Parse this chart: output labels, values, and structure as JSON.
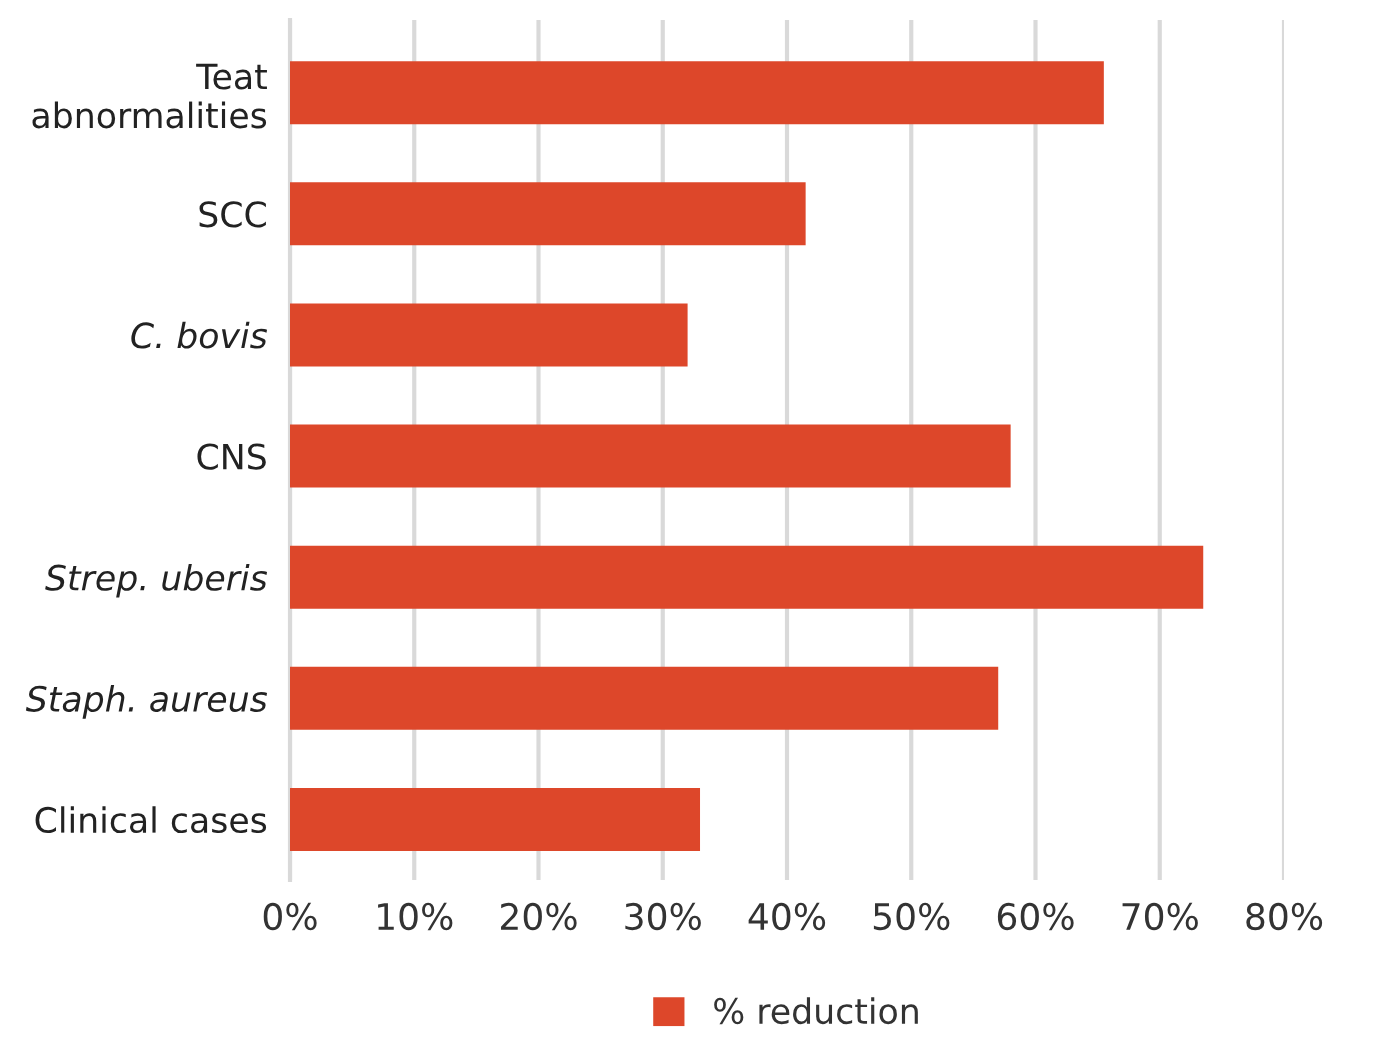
{
  "chart_data": {
    "type": "bar",
    "orientation": "horizontal",
    "categories": [
      "Teat\nabnormalities",
      "SCC",
      "C. bovis",
      "CNS",
      "Strep. uberis",
      "Staph. aureus",
      "Clinical cases"
    ],
    "series": [
      {
        "name": "% reduction",
        "color": "#dd472a",
        "values": [
          65.5,
          41.5,
          32,
          58,
          73.5,
          57,
          33
        ]
      }
    ],
    "xlim": [
      0,
      80
    ],
    "xticks": [
      {
        "value": 0,
        "label": "0%"
      },
      {
        "value": 10,
        "label": "10%"
      },
      {
        "value": 20,
        "label": "20%"
      },
      {
        "value": 30,
        "label": "30%"
      },
      {
        "value": 40,
        "label": "40%"
      },
      {
        "value": 50,
        "label": "50%"
      },
      {
        "value": 60,
        "label": "60%"
      },
      {
        "value": 70,
        "label": "70%"
      },
      {
        "value": 80,
        "label": "80%"
      }
    ],
    "grid": "x",
    "legend": "bottom"
  }
}
